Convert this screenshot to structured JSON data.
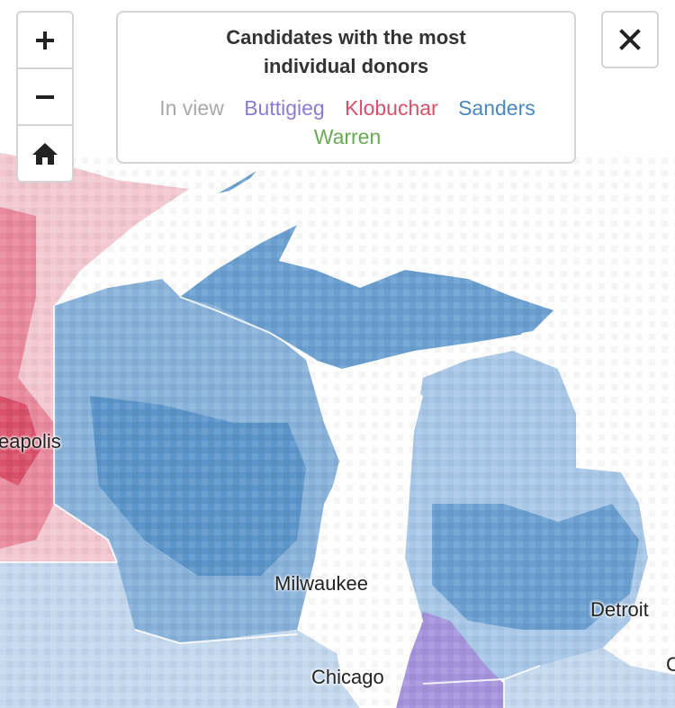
{
  "controls": {
    "zoom_in": "zoom-in",
    "zoom_out": "zoom-out",
    "home": "home",
    "close": "close"
  },
  "legend": {
    "title": "Candidates with the most individual donors",
    "items": [
      {
        "label": "In view",
        "color": "#a9a9a9"
      },
      {
        "label": "Buttigieg",
        "color": "#8c7bd4"
      },
      {
        "label": "Klobuchar",
        "color": "#d9506a"
      },
      {
        "label": "Sanders",
        "color": "#4a86c0"
      },
      {
        "label": "Warren",
        "color": "#6aaa55"
      }
    ]
  },
  "cities": [
    {
      "name": "eapolis"
    },
    {
      "name": "Milwaukee"
    },
    {
      "name": "Chicago"
    },
    {
      "name": "Detroit"
    },
    {
      "name": "C"
    }
  ],
  "colors": {
    "sanders_dark": "#5b95c9",
    "sanders_mid": "#88b2da",
    "sanders_light": "#c4d9ee",
    "klobuchar_dark": "#e47089",
    "klobuchar_light": "#f3c8d1",
    "buttigieg": "#a594dc",
    "water": "#ffffff"
  }
}
